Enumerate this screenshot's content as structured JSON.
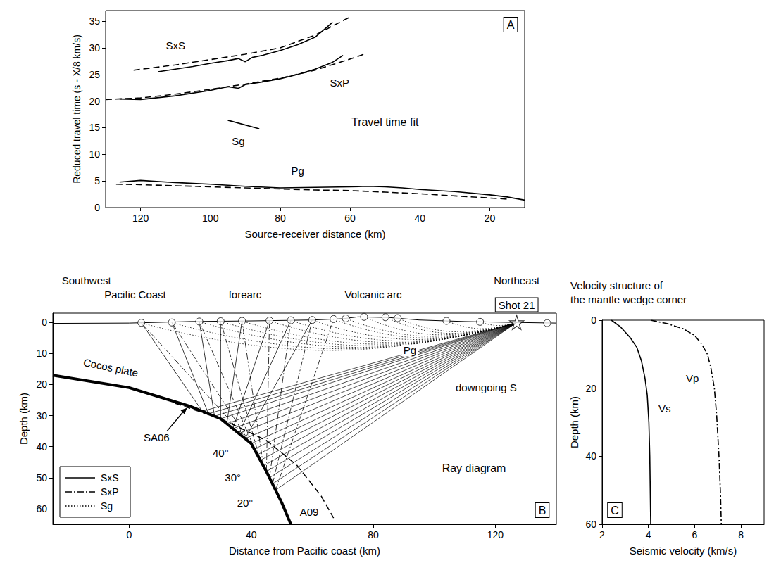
{
  "chart_data": [
    {
      "type": "line",
      "panel": "A",
      "x_label": "Source-receiver distance (km)",
      "y_label": "Reduced travel time (s - X/8 km/s)",
      "xlim": [
        130,
        10
      ],
      "xticks": [
        120,
        100,
        80,
        60,
        40,
        20
      ],
      "ylim": [
        0,
        37
      ],
      "yticks": [
        0,
        5,
        10,
        15,
        20,
        25,
        30,
        35
      ],
      "grid": false,
      "series": [
        {
          "line_style": "solid",
          "color": "#000000",
          "x": [
            115,
            110,
            105,
            100,
            95,
            92,
            90,
            88,
            85,
            80,
            75,
            70,
            65
          ],
          "values": [
            25.5,
            26.0,
            26.5,
            27.1,
            27.6,
            28.0,
            27.4,
            28.2,
            28.6,
            29.5,
            30.6,
            32.0,
            34.8
          ]
        },
        {
          "line_style": "dashed",
          "color": "#000000",
          "x": [
            122,
            110,
            100,
            90,
            80,
            70,
            60
          ],
          "values": [
            25.8,
            26.8,
            27.8,
            28.8,
            30.0,
            32.4,
            35.8
          ]
        },
        {
          "line_style": "solid",
          "color": "#000000",
          "x": [
            126,
            120,
            110,
            100,
            95,
            92,
            90,
            85,
            80,
            75,
            70,
            65,
            62
          ],
          "values": [
            20.4,
            20.3,
            21.0,
            22.0,
            22.7,
            22.4,
            23.1,
            23.6,
            24.2,
            25.0,
            26.0,
            27.3,
            28.6
          ]
        },
        {
          "line_style": "dashed",
          "color": "#000000",
          "x": [
            130,
            120,
            110,
            100,
            90,
            80,
            70,
            60,
            56
          ],
          "values": [
            20.3,
            20.6,
            21.3,
            22.2,
            23.2,
            24.3,
            25.8,
            27.9,
            28.8
          ]
        },
        {
          "line_style": "solid",
          "color": "#000000",
          "x": [
            95,
            86
          ],
          "values": [
            16.4,
            14.8
          ]
        },
        {
          "line_style": "solid",
          "color": "#000000",
          "x": [
            126,
            120,
            110,
            100,
            90,
            80,
            70,
            60,
            55,
            50,
            45,
            40,
            30,
            20,
            15,
            10
          ],
          "values": [
            4.8,
            5.1,
            4.7,
            4.4,
            4.0,
            3.7,
            3.8,
            3.9,
            4.0,
            3.9,
            3.7,
            3.4,
            3.0,
            2.4,
            2.0,
            1.4
          ]
        },
        {
          "line_style": "dashed",
          "color": "#000000",
          "x": [
            127,
            120,
            110,
            100,
            90,
            80,
            70,
            60,
            50,
            40,
            30,
            20,
            15
          ],
          "values": [
            4.4,
            4.3,
            4.1,
            3.9,
            3.7,
            3.5,
            3.3,
            3.2,
            2.9,
            2.6,
            2.2,
            1.8,
            1.6
          ]
        }
      ],
      "annotations": [
        {
          "text": "SxS",
          "x": 110,
          "y": 30.5
        },
        {
          "text": "SxP",
          "x": 63,
          "y": 23.5
        },
        {
          "text": "Sg",
          "x": 92,
          "y": 12.5
        },
        {
          "text": "Pg",
          "x": 75,
          "y": 7
        },
        {
          "text": "Travel time fit",
          "x": 50,
          "y": 16
        }
      ]
    },
    {
      "type": "line",
      "panel": "B",
      "x_label": "Distance from Pacific coast (km)",
      "y_label": "Depth (km)",
      "xlim": [
        -25,
        140
      ],
      "xticks": [
        0,
        40,
        80,
        120
      ],
      "ylim": [
        65,
        -3
      ],
      "yticks": [
        0,
        10,
        20,
        30,
        40,
        50,
        60
      ],
      "grid": false,
      "legend": "lower left",
      "header": [
        [
          {
            "text": "Southwest",
            "x": -14
          },
          {
            "text": "Northeast",
            "x": 127
          }
        ],
        [
          {
            "text": "Pacific Coast",
            "x": 2
          },
          {
            "text": "forearc",
            "x": 38
          },
          {
            "text": "Volcanic arc",
            "x": 80
          }
        ]
      ],
      "surface": {
        "x": [
          -25,
          0,
          20,
          40,
          60,
          70,
          75,
          85,
          95,
          110,
          127,
          140
        ],
        "values": [
          0.3,
          0.2,
          -0.3,
          -0.5,
          -0.8,
          -1.2,
          -1.8,
          -1.6,
          -0.8,
          -0.3,
          0,
          0.2
        ]
      },
      "slab": {
        "x": [
          -25,
          0,
          20,
          30,
          40,
          45,
          50,
          53
        ],
        "values": [
          17,
          21,
          27,
          31,
          39,
          48,
          58,
          65
        ]
      },
      "slab_model": {
        "line_style": "dashed",
        "x": [
          15,
          30,
          45,
          55,
          63,
          67
        ],
        "values": [
          26,
          31,
          38,
          46,
          56,
          63
        ]
      },
      "source": {
        "name": "Shot 21",
        "x": 127,
        "y": 0
      },
      "stations": {
        "x": [
          4,
          14,
          23,
          30,
          37,
          46,
          53,
          60,
          67,
          71,
          77,
          84,
          88,
          104,
          115,
          137
        ],
        "values": [
          0.1,
          0.0,
          -0.3,
          -0.4,
          -0.5,
          -0.6,
          -0.7,
          -0.8,
          -1.1,
          -1.3,
          -1.8,
          -1.7,
          -1.4,
          -0.5,
          -0.2,
          0.2
        ]
      },
      "downgoing": {
        "name": "downgoing S",
        "x": 117,
        "y": 21,
        "line_style": "solid",
        "rays": [
          [
            [
              127,
              0
            ],
            [
              24,
              28.6
            ]
          ],
          [
            [
              127,
              0
            ],
            [
              26,
              29.4
            ]
          ],
          [
            [
              127,
              0
            ],
            [
              28,
              30.2
            ]
          ],
          [
            [
              127,
              0
            ],
            [
              30,
              31
            ]
          ],
          [
            [
              127,
              0
            ],
            [
              32,
              32.6
            ]
          ],
          [
            [
              127,
              0
            ],
            [
              34,
              34.2
            ]
          ],
          [
            [
              127,
              0
            ],
            [
              36,
              35.8
            ]
          ],
          [
            [
              127,
              0
            ],
            [
              38,
              37.4
            ]
          ],
          [
            [
              127,
              0
            ],
            [
              40,
              39
            ]
          ],
          [
            [
              127,
              0
            ],
            [
              41,
              40.8
            ]
          ],
          [
            [
              127,
              0
            ],
            [
              42,
              42.6
            ]
          ],
          [
            [
              127,
              0
            ],
            [
              43,
              44.4
            ]
          ],
          [
            [
              127,
              0
            ],
            [
              44,
              46.2
            ]
          ],
          [
            [
              127,
              0
            ],
            [
              45,
              48
            ]
          ],
          [
            [
              127,
              0
            ],
            [
              46,
              50
            ]
          ],
          [
            [
              127,
              0
            ],
            [
              47,
              52
            ]
          ],
          [
            [
              127,
              0
            ],
            [
              48,
              54
            ]
          ]
        ]
      },
      "series": [
        {
          "name": "SxS",
          "line_style": "solid",
          "color": "#000000",
          "rays": [
            [
              [
                24,
                28.6
              ],
              [
                4,
                0.1
              ]
            ],
            [
              [
                26,
                29.4
              ],
              [
                14,
                0.0
              ]
            ],
            [
              [
                28,
                30.2
              ],
              [
                23,
                -0.3
              ]
            ],
            [
              [
                30,
                31
              ],
              [
                30,
                -0.4
              ]
            ],
            [
              [
                32,
                32.6
              ],
              [
                37,
                -0.5
              ]
            ],
            [
              [
                34,
                34.2
              ],
              [
                46,
                -0.6
              ]
            ],
            [
              [
                36,
                35.8
              ],
              [
                53,
                -0.7
              ]
            ],
            [
              [
                38,
                37.4
              ],
              [
                60,
                -0.8
              ]
            ]
          ]
        },
        {
          "name": "SxP",
          "line_style": "dash-dot",
          "color": "#000000",
          "rays": [
            [
              [
                40,
                39
              ],
              [
                4,
                0.1
              ]
            ],
            [
              [
                41,
                40.8
              ],
              [
                14,
                0.0
              ]
            ],
            [
              [
                42,
                42.6
              ],
              [
                23,
                -0.3
              ]
            ],
            [
              [
                43,
                44.4
              ],
              [
                30,
                -0.4
              ]
            ],
            [
              [
                44,
                46.2
              ],
              [
                37,
                -0.5
              ]
            ],
            [
              [
                45,
                48
              ],
              [
                46,
                -0.6
              ]
            ],
            [
              [
                46,
                50
              ],
              [
                53,
                -0.7
              ]
            ],
            [
              [
                47,
                52
              ],
              [
                60,
                -0.8
              ]
            ],
            [
              [
                48,
                54
              ],
              [
                67,
                -1.1
              ]
            ]
          ]
        },
        {
          "name": "Sg",
          "line_style": "dotted",
          "color": "#000000",
          "rays": [
            [
              [
                127,
                0
              ],
              [
                65.5,
                9
              ],
              [
                4,
                0.1
              ]
            ],
            [
              [
                127,
                0
              ],
              [
                70.5,
                8.5
              ],
              [
                14,
                0.0
              ]
            ],
            [
              [
                127,
                0
              ],
              [
                75,
                8
              ],
              [
                23,
                -0.3
              ]
            ],
            [
              [
                127,
                0
              ],
              [
                78.5,
                7.5
              ],
              [
                30,
                -0.4
              ]
            ],
            [
              [
                127,
                0
              ],
              [
                82,
                7
              ],
              [
                37,
                -0.5
              ]
            ],
            [
              [
                127,
                0
              ],
              [
                86.5,
                6.5
              ],
              [
                46,
                -0.6
              ]
            ],
            [
              [
                127,
                0
              ],
              [
                90,
                6
              ],
              [
                53,
                -0.7
              ]
            ],
            [
              [
                127,
                0
              ],
              [
                93.5,
                5.5
              ],
              [
                60,
                -0.8
              ]
            ],
            [
              [
                127,
                0
              ],
              [
                97,
                5
              ],
              [
                67,
                -1.1
              ]
            ],
            [
              [
                127,
                0
              ],
              [
                99,
                4.5
              ],
              [
                71,
                -1.3
              ]
            ],
            [
              [
                127,
                0
              ],
              [
                102,
                4
              ],
              [
                77,
                -1.8
              ]
            ],
            [
              [
                127,
                0
              ],
              [
                105.5,
                3.5
              ],
              [
                84,
                -1.7
              ]
            ],
            [
              [
                127,
                0
              ],
              [
                107.5,
                3
              ],
              [
                88,
                -1.4
              ]
            ],
            [
              [
                127,
                0
              ],
              [
                115.5,
                2
              ],
              [
                104,
                -0.5
              ]
            ],
            [
              [
                127,
                0
              ],
              [
                121,
                1
              ],
              [
                115,
                -0.2
              ]
            ]
          ]
        }
      ],
      "annotations": [
        {
          "text": "Cocos plate",
          "x": -6,
          "y": 14.5
        },
        {
          "text": "SA06",
          "x": 9,
          "y": 37,
          "arrow_to": [
            19,
            27.5
          ]
        },
        {
          "text": "A09",
          "x": 59,
          "y": 61
        },
        {
          "text": "40°",
          "x": 30,
          "y": 42
        },
        {
          "text": "30°",
          "x": 34,
          "y": 50
        },
        {
          "text": "20°",
          "x": 38,
          "y": 58
        },
        {
          "text": "Pg",
          "x": 92,
          "y": 9
        },
        {
          "text": "Ray diagram",
          "x": 113,
          "y": 47
        }
      ]
    },
    {
      "type": "line",
      "panel": "C",
      "title": "Velocity structure of the mantle wedge corner",
      "x_label": "Seismic velocity (km/s)",
      "y_label": "Depth (km)",
      "xlim": [
        2,
        9
      ],
      "xticks": [
        2,
        4,
        6,
        8
      ],
      "ylim": [
        60,
        0
      ],
      "yticks": [
        0,
        20,
        40,
        60
      ],
      "grid": false,
      "series": [
        {
          "line_style": "solid",
          "color": "#000000",
          "x": [
            2.4,
            2.8,
            3.2,
            3.5,
            3.7,
            3.85,
            3.95,
            4.02,
            4.06,
            4.08,
            4.1
          ],
          "values": [
            0,
            2,
            5,
            8,
            12,
            17,
            22,
            30,
            40,
            50,
            60
          ]
        },
        {
          "line_style": "dash-dot",
          "color": "#000000",
          "x": [
            4.1,
            4.8,
            5.5,
            6.0,
            6.3,
            6.55,
            6.7,
            6.85,
            6.95,
            7.05,
            7.12,
            7.15
          ],
          "values": [
            0,
            1,
            2.5,
            4.5,
            7,
            10,
            14,
            20,
            28,
            40,
            52,
            60
          ]
        }
      ],
      "annotations": [
        {
          "text": "Vs",
          "x": 4.7,
          "y": 26
        },
        {
          "text": "Vp",
          "x": 5.9,
          "y": 17
        }
      ]
    }
  ]
}
